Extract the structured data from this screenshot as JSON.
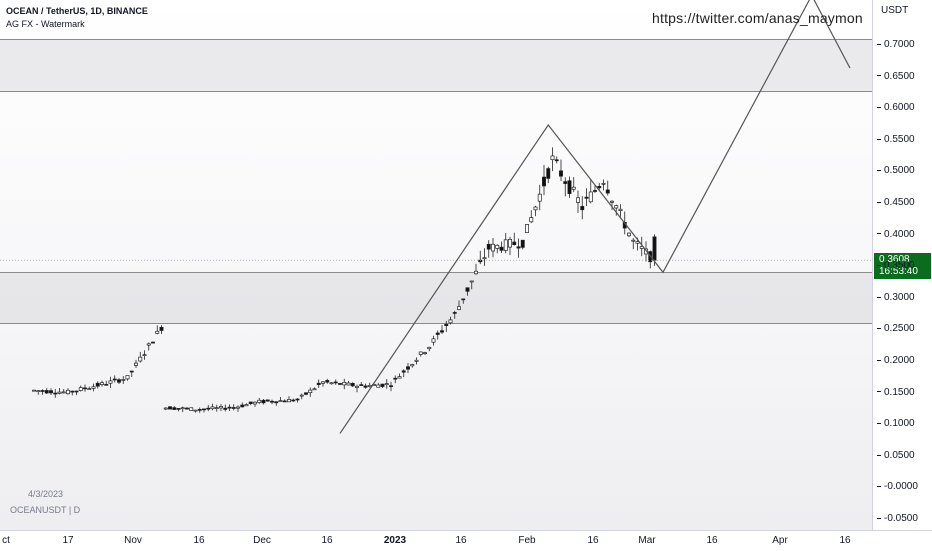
{
  "header": {
    "symbol_line": "OCEAN / TetherUS, 1D, BINANCE",
    "indicator_line": "AG FX - Watermark"
  },
  "watermark_link": "https://twitter.com/anas_maymon",
  "bottom_left": {
    "date": "4/3/2023",
    "symbol": "OCEANUSDT | D"
  },
  "price_axis": {
    "currency": "USDT",
    "ticks": [
      "0.7000",
      "0.6500",
      "0.6000",
      "0.5500",
      "0.5000",
      "0.4500",
      "0.4000",
      "0.3500",
      "0.3000",
      "0.2500",
      "0.2000",
      "0.1500",
      "0.1000",
      "0.0500",
      "-0.0000",
      "-0.0500"
    ],
    "last_price": "0.3608",
    "countdown": "16:53:40",
    "last_price_color": "#0b6b1f"
  },
  "time_axis": {
    "ticks": [
      "ct",
      "17",
      "Nov",
      "16",
      "Dec",
      "16",
      "2023",
      "16",
      "Feb",
      "16",
      "Mar",
      "16",
      "Apr",
      "16"
    ]
  },
  "chart_data": {
    "type": "candlestick",
    "title": "OCEAN / TetherUS, 1D, BINANCE",
    "ylim": [
      -0.06,
      0.78
    ],
    "grid": false,
    "zones": [
      {
        "low": 0.63,
        "high": 0.71
      },
      {
        "low": 0.26,
        "high": 0.34
      }
    ],
    "series": [
      {
        "date": "2022-10-09",
        "close": 0.155
      },
      {
        "date": "2022-10-17",
        "close": 0.152
      },
      {
        "date": "2022-10-24",
        "close": 0.163
      },
      {
        "date": "2022-10-31",
        "close": 0.175
      },
      {
        "date": "2022-11-08",
        "close": 0.255
      },
      {
        "date": "2022-11-09",
        "close": 0.128
      },
      {
        "date": "2022-11-16",
        "close": 0.125
      },
      {
        "date": "2022-11-25",
        "close": 0.128
      },
      {
        "date": "2022-12-01",
        "close": 0.137
      },
      {
        "date": "2022-12-10",
        "close": 0.14
      },
      {
        "date": "2022-12-16",
        "close": 0.168
      },
      {
        "date": "2022-12-25",
        "close": 0.162
      },
      {
        "date": "2023-01-01",
        "close": 0.165
      },
      {
        "date": "2023-01-10",
        "close": 0.225
      },
      {
        "date": "2023-01-16",
        "close": 0.275
      },
      {
        "date": "2023-01-24",
        "close": 0.38
      },
      {
        "date": "2023-02-01",
        "close": 0.39
      },
      {
        "date": "2023-02-08",
        "close": 0.52
      },
      {
        "date": "2023-02-15",
        "close": 0.445
      },
      {
        "date": "2023-02-20",
        "close": 0.49
      },
      {
        "date": "2023-02-27",
        "close": 0.39
      },
      {
        "date": "2023-03-04",
        "close": 0.361
      }
    ],
    "projection_path": [
      {
        "date": "2022-12-20",
        "price": 0.087
      },
      {
        "date": "2023-02-07",
        "price": 0.575
      },
      {
        "date": "2023-03-06",
        "price": 0.342
      },
      {
        "date": "2023-04-10",
        "price": 0.78
      },
      {
        "date": "2023-04-19",
        "price": 0.665
      }
    ]
  }
}
